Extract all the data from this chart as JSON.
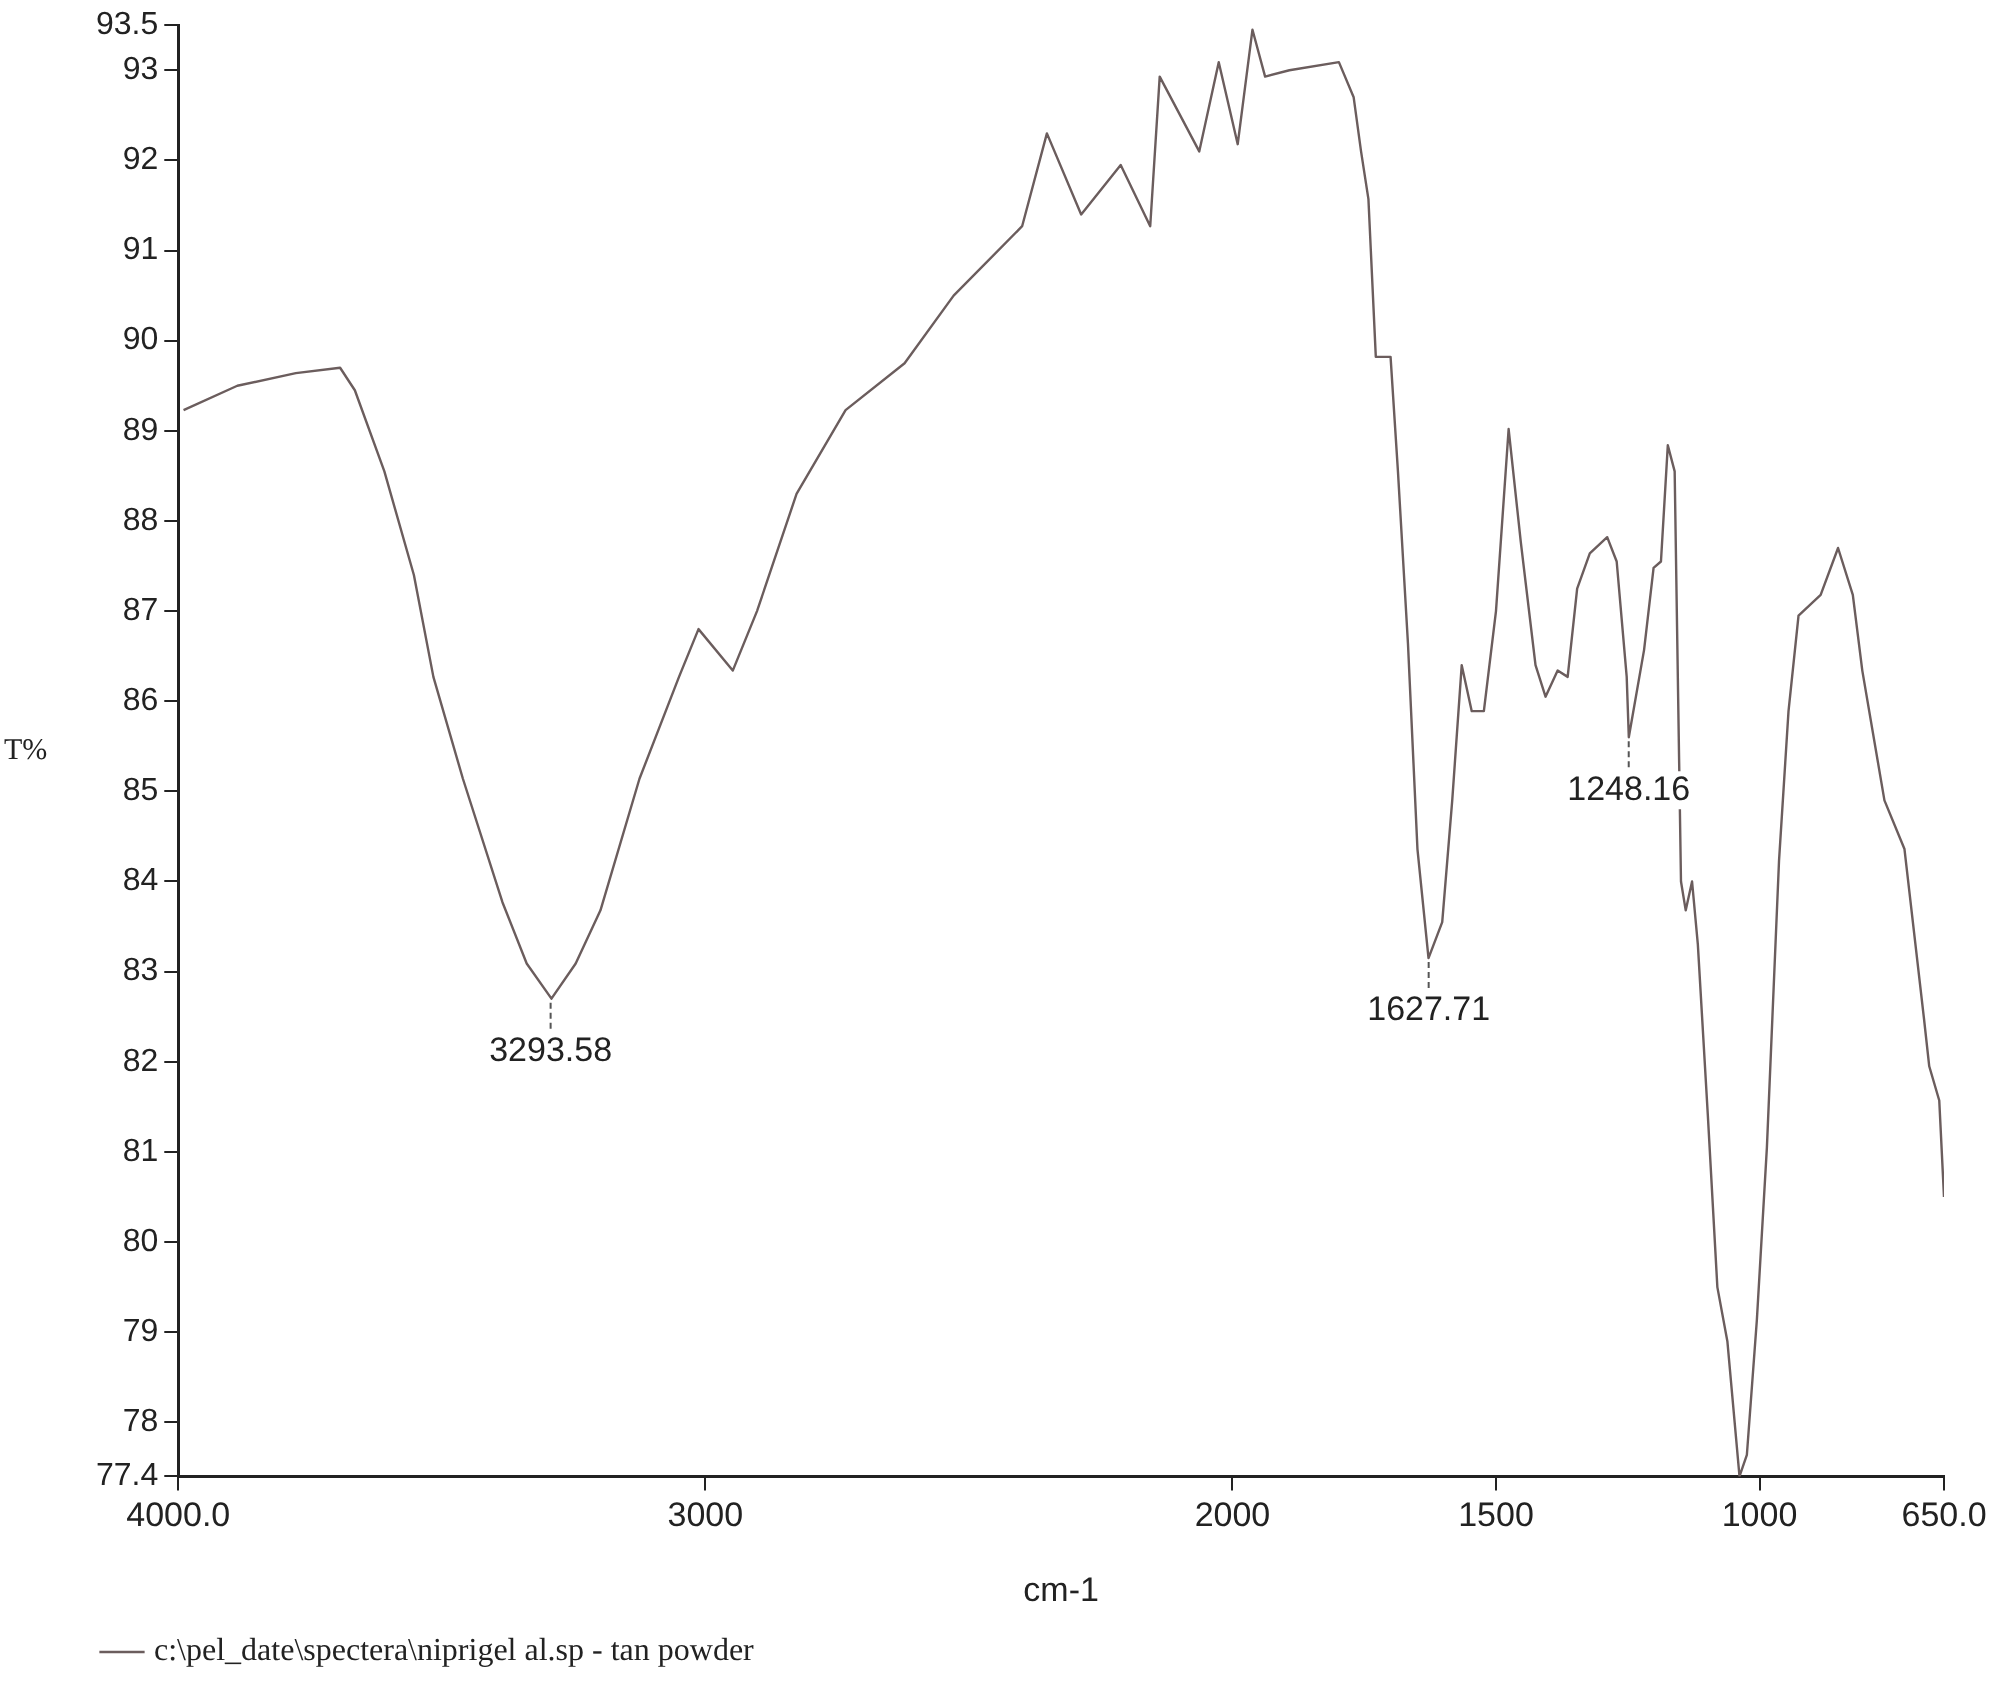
{
  "chart_data": {
    "type": "line",
    "xlabel": "cm-1",
    "ylabel": "T%",
    "legend": "bottom",
    "marker": "none",
    "line_style": "solid",
    "grid": false,
    "xlim": [
      4000,
      650
    ],
    "xticks": [
      {
        "value": 4000,
        "label": "4000.0"
      },
      3000,
      2000,
      1500,
      1000,
      {
        "value": 650,
        "label": "650.0"
      }
    ],
    "ylim": [
      77.4,
      93.5
    ],
    "yticks": [
      77.4,
      78,
      79,
      80,
      81,
      82,
      83,
      84,
      85,
      86,
      87,
      88,
      89,
      90,
      91,
      92,
      93,
      93.5
    ],
    "annotations": [
      {
        "text": "3293.58",
        "x": 3293.58,
        "y": 82.7
      },
      {
        "text": "1627.71",
        "x": 1627.71,
        "y": 83.15
      },
      {
        "text": "1248.16",
        "x": 1248.16,
        "y": 85.6
      }
    ],
    "series": [
      {
        "name": "c:\\pel_date\\spectera\\niprigel al.sp - tan powder",
        "color": "#6b5d5d",
        "x": [
          3990,
          3888,
          3777,
          3693,
          3665,
          3609,
          3553,
          3516,
          3460,
          3385,
          3339,
          3292,
          3246,
          3199,
          3125,
          3050,
          3013,
          2948,
          2902,
          2827,
          2734,
          2622,
          2529,
          2399,
          2352,
          2287,
          2212,
          2156,
          2138,
          2063,
          2026,
          1990,
          1962,
          1938,
          1892,
          1798,
          1770,
          1756,
          1742,
          1728,
          1700,
          1686,
          1667,
          1649,
          1628,
          1602,
          1583,
          1565,
          1546,
          1523,
          1500,
          1476,
          1453,
          1425,
          1406,
          1383,
          1364,
          1346,
          1322,
          1289,
          1271,
          1252,
          1248,
          1219,
          1201,
          1187,
          1174,
          1161,
          1149,
          1140,
          1128,
          1117,
          1098,
          1080,
          1061,
          1038,
          1024,
          1005,
          986,
          963,
          945,
          926,
          884,
          851,
          823,
          805,
          763,
          725,
          688,
          678,
          659,
          650
        ],
        "values": [
          89.23,
          89.5,
          89.64,
          89.7,
          89.45,
          88.55,
          87.4,
          86.27,
          85.14,
          83.77,
          83.09,
          82.7,
          83.09,
          83.68,
          85.14,
          86.27,
          86.8,
          86.34,
          87.0,
          88.3,
          89.23,
          89.75,
          90.5,
          91.27,
          92.3,
          91.4,
          91.95,
          91.27,
          92.93,
          92.1,
          93.09,
          92.18,
          93.45,
          92.93,
          93.0,
          93.09,
          92.7,
          92.1,
          91.57,
          89.82,
          89.82,
          88.55,
          86.64,
          84.36,
          83.15,
          83.55,
          84.9,
          86.4,
          85.89,
          85.89,
          87.0,
          89.02,
          87.77,
          86.4,
          86.05,
          86.34,
          86.27,
          87.25,
          87.64,
          87.82,
          87.55,
          86.27,
          85.6,
          86.57,
          87.48,
          87.55,
          88.84,
          88.55,
          84.0,
          83.68,
          84.0,
          83.3,
          81.4,
          79.5,
          78.9,
          77.4,
          77.64,
          79.14,
          81.05,
          84.23,
          85.89,
          86.95,
          87.18,
          87.7,
          87.18,
          86.34,
          84.9,
          84.36,
          82.48,
          81.95,
          81.57,
          80.5
        ]
      }
    ]
  }
}
